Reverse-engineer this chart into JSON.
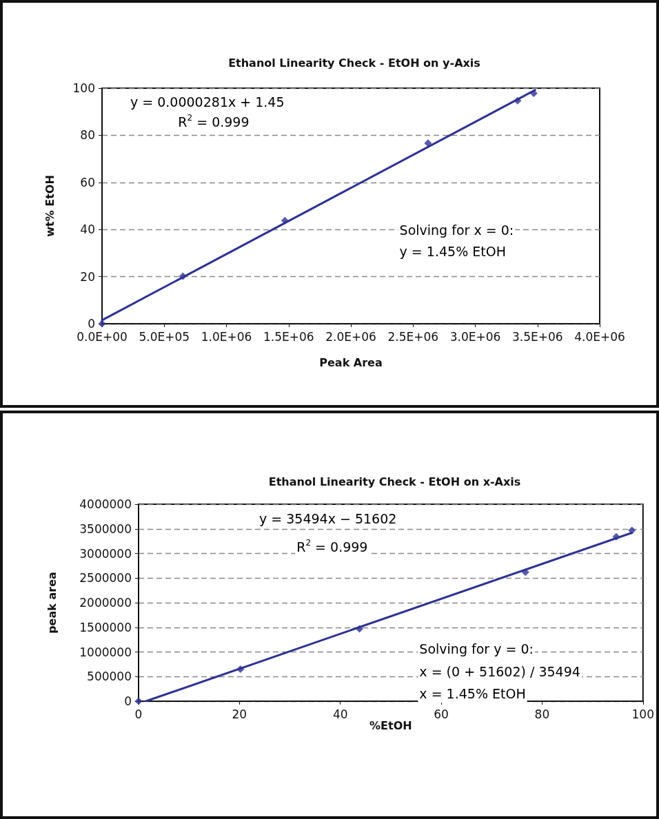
{
  "chart_data": [
    {
      "type": "scatter",
      "title": "Ethanol Linearity Check - EtOH on y-Axis",
      "xlabel": "Peak Area",
      "ylabel": "wt% EtOH",
      "series": [
        {
          "color": "#2e3192",
          "marker": "diamond",
          "x": [
            0,
            650000,
            1470000,
            2620000,
            3340000,
            3470000
          ],
          "values": [
            0,
            20.2,
            43.8,
            76.7,
            94.7,
            97.8
          ]
        },
        {
          "type": "line",
          "color": "#2e3192",
          "marker": "none",
          "line_style": "solid",
          "x": [
            0,
            3480000
          ],
          "values": [
            1.5,
            99.2
          ]
        }
      ],
      "xlim": [
        0,
        4000000
      ],
      "xticks": [
        {
          "value": 0,
          "label": "0.0E+00"
        },
        {
          "value": 500000,
          "label": "5.0E+05"
        },
        {
          "value": 1000000,
          "label": "1.0E+06"
        },
        {
          "value": 1500000,
          "label": "1.5E+06"
        },
        {
          "value": 2000000,
          "label": "2.0E+06"
        },
        {
          "value": 2500000,
          "label": "2.5E+06"
        },
        {
          "value": 3000000,
          "label": "3.0E+06"
        },
        {
          "value": 3500000,
          "label": "3.5E+06"
        },
        {
          "value": 4000000,
          "label": "4.0E+06"
        }
      ],
      "ylim": [
        0,
        100
      ],
      "yticks": [
        0,
        20,
        40,
        60,
        80,
        100
      ],
      "grid": "y",
      "annotations": [
        "y = 0.0000281x + 1.45",
        "R$^{2}$ = 0.999",
        "Solving for x = 0:",
        "y = 1.45% EtOH"
      ]
    },
    {
      "type": "scatter",
      "title": "Ethanol Linearity Check - EtOH on x-Axis",
      "xlabel": "%EtOH",
      "ylabel": "peak area",
      "series": [
        {
          "color": "#2e3192",
          "marker": "diamond",
          "x": [
            0,
            20.2,
            43.8,
            76.7,
            94.7,
            97.8
          ],
          "values": [
            0,
            650000,
            1470000,
            2620000,
            3340000,
            3470000
          ]
        },
        {
          "type": "line",
          "color": "#2e3192",
          "marker": "none",
          "line_style": "solid",
          "x": [
            1.45,
            97.8
          ],
          "values": [
            0,
            3420000
          ]
        }
      ],
      "xlim": [
        0,
        100
      ],
      "xticks": [
        0,
        20,
        40,
        60,
        80,
        100
      ],
      "ylim": [
        0,
        4000000
      ],
      "yticks": [
        0,
        500000,
        1000000,
        1500000,
        2000000,
        2500000,
        3000000,
        3500000,
        4000000
      ],
      "grid": "y",
      "annotations": [
        "y = 35494x − 51602",
        "R$^{2}$ = 0.999",
        "Solving for y = 0:",
        "x = (0 + 51602) / 35494",
        "x = 1.45% EtOH"
      ]
    }
  ]
}
